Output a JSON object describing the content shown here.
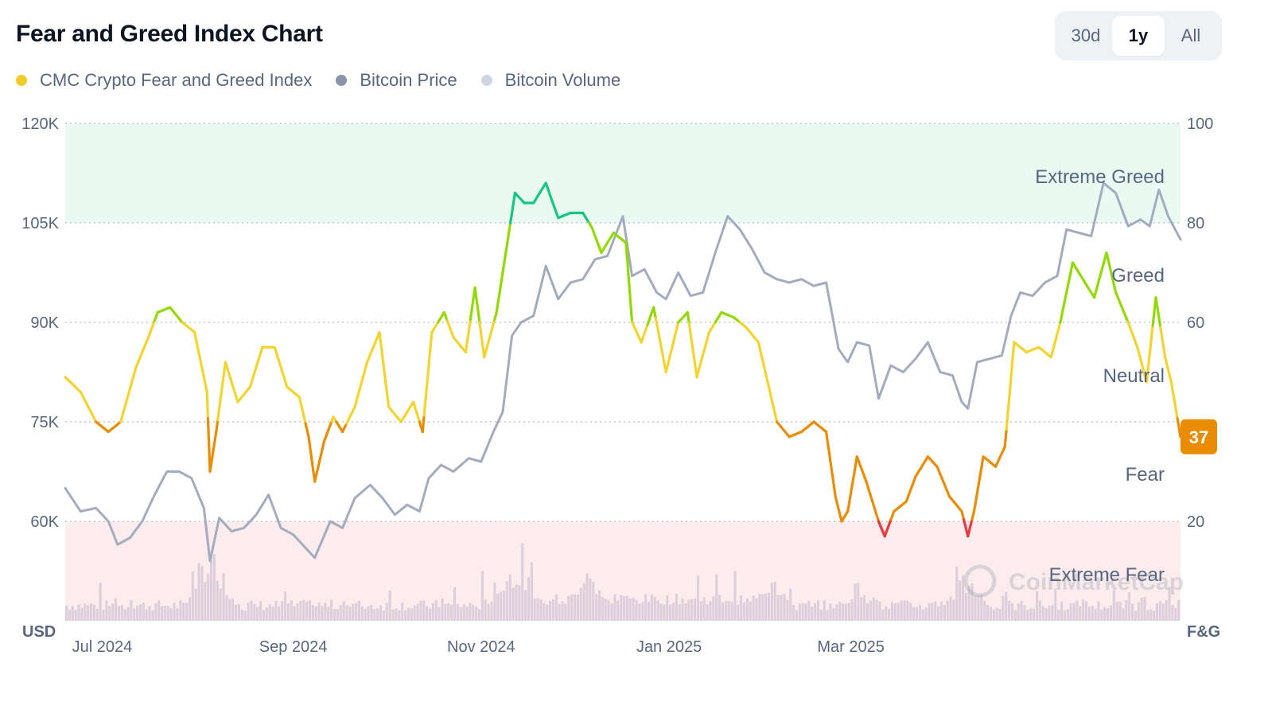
{
  "header": {
    "title": "Fear and Greed Index Chart",
    "range_buttons": [
      {
        "label": "30d",
        "active": false
      },
      {
        "label": "1y",
        "active": true
      },
      {
        "label": "All",
        "active": false
      }
    ]
  },
  "legend": [
    {
      "label": "CMC Crypto Fear and Greed Index",
      "color": "#f0cc2c"
    },
    {
      "label": "Bitcoin Price",
      "color": "#8a93a7"
    },
    {
      "label": "Bitcoin Volume",
      "color": "#cfd6e2"
    }
  ],
  "watermark": "CoinMarketCap",
  "colors": {
    "extreme_fear": "#ea3943",
    "fear": "#ea8c00",
    "neutral": "#f3d42f",
    "greed": "#93d900",
    "extreme_greed": "#16c784",
    "price_line": "#a3acbe",
    "volume_bar": "#dccfdb",
    "extreme_greed_zone": "#eafaf2",
    "extreme_fear_zone": "#fdeced",
    "current_badge": "#ea8c00"
  },
  "chart_data": {
    "type": "line",
    "x_labels": [
      "Jul 2024",
      "Sep 2024",
      "Nov 2024",
      "Jan 2025",
      "Mar 2025"
    ],
    "x_range": [
      "2024-06-19",
      "2025-06-16"
    ],
    "y_left": {
      "unit": "USD",
      "ticks": [
        "120K",
        "105K",
        "90K",
        "75K",
        "60K"
      ],
      "range": [
        45000,
        120000
      ]
    },
    "y_right": {
      "unit": "F&G",
      "ticks": [
        "100",
        "80",
        "60",
        "20"
      ],
      "range": [
        0,
        100
      ]
    },
    "zones": [
      {
        "label": "Extreme Greed",
        "from": 80,
        "to": 100
      },
      {
        "label": "Greed",
        "from": 60,
        "to": 80
      },
      {
        "label": "Neutral",
        "from": 40,
        "to": 60
      },
      {
        "label": "Fear",
        "from": 20,
        "to": 40
      },
      {
        "label": "Extreme Fear",
        "from": 0,
        "to": 20
      }
    ],
    "current_value": 37,
    "series": [
      {
        "name": "CMC Crypto Fear and Greed Index",
        "axis": "right",
        "points": [
          [
            "2024-06-19",
            49
          ],
          [
            "2024-06-24",
            46
          ],
          [
            "2024-06-29",
            40
          ],
          [
            "2024-07-03",
            38
          ],
          [
            "2024-07-07",
            40
          ],
          [
            "2024-07-12",
            51
          ],
          [
            "2024-07-16",
            57
          ],
          [
            "2024-07-19",
            62
          ],
          [
            "2024-07-23",
            63
          ],
          [
            "2024-07-27",
            60
          ],
          [
            "2024-07-31",
            58
          ],
          [
            "2024-08-04",
            46
          ],
          [
            "2024-08-05",
            30
          ],
          [
            "2024-08-07",
            38
          ],
          [
            "2024-08-10",
            52
          ],
          [
            "2024-08-14",
            44
          ],
          [
            "2024-08-18",
            47
          ],
          [
            "2024-08-22",
            55
          ],
          [
            "2024-08-26",
            55
          ],
          [
            "2024-08-30",
            47
          ],
          [
            "2024-09-03",
            45
          ],
          [
            "2024-09-06",
            37
          ],
          [
            "2024-09-08",
            28
          ],
          [
            "2024-09-11",
            36
          ],
          [
            "2024-09-14",
            41
          ],
          [
            "2024-09-17",
            38
          ],
          [
            "2024-09-21",
            43
          ],
          [
            "2024-09-25",
            52
          ],
          [
            "2024-09-29",
            58
          ],
          [
            "2024-10-02",
            43
          ],
          [
            "2024-10-06",
            40
          ],
          [
            "2024-10-10",
            44
          ],
          [
            "2024-10-13",
            38
          ],
          [
            "2024-10-16",
            58
          ],
          [
            "2024-10-20",
            62
          ],
          [
            "2024-10-23",
            57
          ],
          [
            "2024-10-27",
            54
          ],
          [
            "2024-10-30",
            67
          ],
          [
            "2024-11-02",
            53
          ],
          [
            "2024-11-06",
            62
          ],
          [
            "2024-11-09",
            74
          ],
          [
            "2024-11-12",
            86
          ],
          [
            "2024-11-15",
            84
          ],
          [
            "2024-11-18",
            84
          ],
          [
            "2024-11-22",
            88
          ],
          [
            "2024-11-26",
            81
          ],
          [
            "2024-11-30",
            82
          ],
          [
            "2024-12-04",
            82
          ],
          [
            "2024-12-07",
            79
          ],
          [
            "2024-12-10",
            74
          ],
          [
            "2024-12-14",
            78
          ],
          [
            "2024-12-18",
            76
          ],
          [
            "2024-12-20",
            60
          ],
          [
            "2024-12-23",
            56
          ],
          [
            "2024-12-27",
            63
          ],
          [
            "2024-12-31",
            50
          ],
          [
            "2025-01-04",
            60
          ],
          [
            "2025-01-07",
            62
          ],
          [
            "2025-01-10",
            49
          ],
          [
            "2025-01-14",
            58
          ],
          [
            "2025-01-18",
            62
          ],
          [
            "2025-01-22",
            61
          ],
          [
            "2025-01-26",
            59
          ],
          [
            "2025-01-30",
            56
          ],
          [
            "2025-02-02",
            48
          ],
          [
            "2025-02-05",
            40
          ],
          [
            "2025-02-09",
            37
          ],
          [
            "2025-02-13",
            38
          ],
          [
            "2025-02-17",
            40
          ],
          [
            "2025-02-21",
            38
          ],
          [
            "2025-02-24",
            25
          ],
          [
            "2025-02-26",
            20
          ],
          [
            "2025-02-28",
            22
          ],
          [
            "2025-03-03",
            33
          ],
          [
            "2025-03-06",
            28
          ],
          [
            "2025-03-10",
            20
          ],
          [
            "2025-03-12",
            17
          ],
          [
            "2025-03-15",
            22
          ],
          [
            "2025-03-19",
            24
          ],
          [
            "2025-03-22",
            29
          ],
          [
            "2025-03-26",
            33
          ],
          [
            "2025-03-29",
            31
          ],
          [
            "2025-04-02",
            25
          ],
          [
            "2025-04-06",
            22
          ],
          [
            "2025-04-08",
            17
          ],
          [
            "2025-04-10",
            22
          ],
          [
            "2025-04-13",
            33
          ],
          [
            "2025-04-17",
            31
          ],
          [
            "2025-04-20",
            35
          ],
          [
            "2025-04-23",
            56
          ],
          [
            "2025-04-27",
            54
          ],
          [
            "2025-05-01",
            55
          ],
          [
            "2025-05-05",
            53
          ],
          [
            "2025-05-08",
            60
          ],
          [
            "2025-05-12",
            72
          ],
          [
            "2025-05-15",
            69
          ],
          [
            "2025-05-19",
            65
          ],
          [
            "2025-05-23",
            74
          ],
          [
            "2025-05-26",
            66
          ],
          [
            "2025-05-30",
            60
          ],
          [
            "2025-06-02",
            55
          ],
          [
            "2025-06-05",
            48
          ],
          [
            "2025-06-08",
            65
          ],
          [
            "2025-06-11",
            53
          ],
          [
            "2025-06-13",
            48
          ],
          [
            "2025-06-16",
            37
          ]
        ]
      },
      {
        "name": "Bitcoin Price",
        "axis": "left",
        "points": [
          [
            "2024-06-19",
            65000
          ],
          [
            "2024-06-24",
            61500
          ],
          [
            "2024-06-29",
            62000
          ],
          [
            "2024-07-03",
            60000
          ],
          [
            "2024-07-06",
            56500
          ],
          [
            "2024-07-10",
            57500
          ],
          [
            "2024-07-14",
            60000
          ],
          [
            "2024-07-18",
            64000
          ],
          [
            "2024-07-22",
            67500
          ],
          [
            "2024-07-26",
            67500
          ],
          [
            "2024-07-30",
            66500
          ],
          [
            "2024-08-03",
            62000
          ],
          [
            "2024-08-05",
            54000
          ],
          [
            "2024-08-08",
            60500
          ],
          [
            "2024-08-12",
            58500
          ],
          [
            "2024-08-16",
            59000
          ],
          [
            "2024-08-20",
            61000
          ],
          [
            "2024-08-24",
            64000
          ],
          [
            "2024-08-28",
            59000
          ],
          [
            "2024-09-01",
            58000
          ],
          [
            "2024-09-05",
            56000
          ],
          [
            "2024-09-08",
            54500
          ],
          [
            "2024-09-13",
            60000
          ],
          [
            "2024-09-17",
            59000
          ],
          [
            "2024-09-21",
            63500
          ],
          [
            "2024-09-26",
            65500
          ],
          [
            "2024-09-30",
            63500
          ],
          [
            "2024-10-04",
            61000
          ],
          [
            "2024-10-08",
            62500
          ],
          [
            "2024-10-12",
            61500
          ],
          [
            "2024-10-15",
            66500
          ],
          [
            "2024-10-19",
            68500
          ],
          [
            "2024-10-23",
            67500
          ],
          [
            "2024-10-28",
            69500
          ],
          [
            "2024-11-01",
            69000
          ],
          [
            "2024-11-05",
            73500
          ],
          [
            "2024-11-08",
            76500
          ],
          [
            "2024-11-11",
            88000
          ],
          [
            "2024-11-14",
            90000
          ],
          [
            "2024-11-18",
            91000
          ],
          [
            "2024-11-22",
            98500
          ],
          [
            "2024-11-26",
            93500
          ],
          [
            "2024-11-30",
            96000
          ],
          [
            "2024-12-04",
            96500
          ],
          [
            "2024-12-08",
            99500
          ],
          [
            "2024-12-12",
            100000
          ],
          [
            "2024-12-17",
            106000
          ],
          [
            "2024-12-20",
            97000
          ],
          [
            "2024-12-24",
            98000
          ],
          [
            "2024-12-28",
            94500
          ],
          [
            "2024-12-31",
            93500
          ],
          [
            "2025-01-04",
            97500
          ],
          [
            "2025-01-08",
            94000
          ],
          [
            "2025-01-12",
            94500
          ],
          [
            "2025-01-16",
            100500
          ],
          [
            "2025-01-20",
            106000
          ],
          [
            "2025-01-24",
            104000
          ],
          [
            "2025-01-28",
            101000
          ],
          [
            "2025-02-01",
            97500
          ],
          [
            "2025-02-05",
            96500
          ],
          [
            "2025-02-09",
            96000
          ],
          [
            "2025-02-13",
            96500
          ],
          [
            "2025-02-17",
            95500
          ],
          [
            "2025-02-21",
            96000
          ],
          [
            "2025-02-25",
            86000
          ],
          [
            "2025-02-28",
            84000
          ],
          [
            "2025-03-03",
            87000
          ],
          [
            "2025-03-07",
            86500
          ],
          [
            "2025-03-10",
            78500
          ],
          [
            "2025-03-14",
            83500
          ],
          [
            "2025-03-18",
            82500
          ],
          [
            "2025-03-22",
            84500
          ],
          [
            "2025-03-26",
            87000
          ],
          [
            "2025-03-30",
            82500
          ],
          [
            "2025-04-03",
            82000
          ],
          [
            "2025-04-06",
            78000
          ],
          [
            "2025-04-08",
            77000
          ],
          [
            "2025-04-11",
            84000
          ],
          [
            "2025-04-15",
            84500
          ],
          [
            "2025-04-19",
            85000
          ],
          [
            "2025-04-22",
            91000
          ],
          [
            "2025-04-25",
            94500
          ],
          [
            "2025-04-29",
            94000
          ],
          [
            "2025-05-03",
            96000
          ],
          [
            "2025-05-07",
            97000
          ],
          [
            "2025-05-10",
            104000
          ],
          [
            "2025-05-14",
            103500
          ],
          [
            "2025-05-18",
            103000
          ],
          [
            "2025-05-22",
            111000
          ],
          [
            "2025-05-26",
            109500
          ],
          [
            "2025-05-30",
            104500
          ],
          [
            "2025-06-03",
            105500
          ],
          [
            "2025-06-06",
            104500
          ],
          [
            "2025-06-09",
            110000
          ],
          [
            "2025-06-12",
            106000
          ],
          [
            "2025-06-16",
            102500
          ]
        ]
      },
      {
        "name": "Bitcoin Volume",
        "axis": "volume",
        "relative_peaks": [
          [
            "2024-08-05",
            1.0
          ],
          [
            "2024-11-12",
            0.85
          ],
          [
            "2024-12-05",
            0.68
          ],
          [
            "2025-02-03",
            0.64
          ],
          [
            "2025-03-03",
            0.55
          ],
          [
            "2025-04-07",
            0.65
          ]
        ]
      }
    ]
  }
}
